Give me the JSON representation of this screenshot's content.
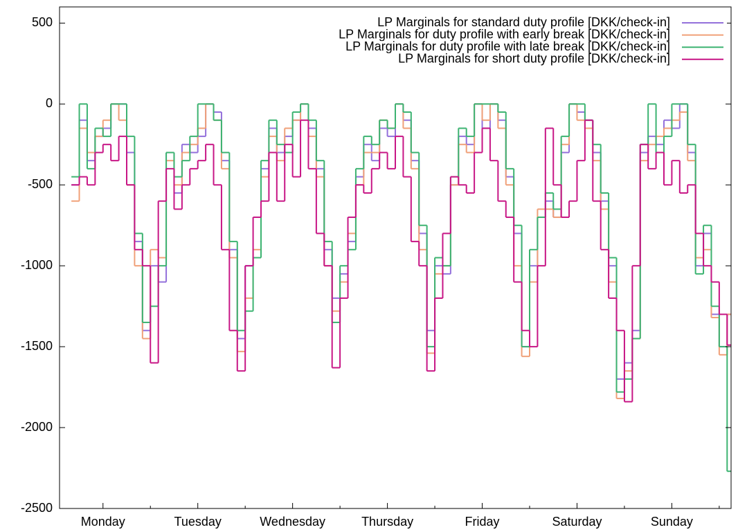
{
  "chart_data": {
    "type": "step",
    "xlim": [
      1,
      171
    ],
    "ylim": [
      -2500,
      600
    ],
    "yticks": [
      500,
      0,
      -500,
      -1000,
      -1500,
      -2000,
      -2500
    ],
    "xticks": [
      {
        "value": 12,
        "label": "Monday"
      },
      {
        "value": 36,
        "label": "Tuesday"
      },
      {
        "value": 60,
        "label": "Wednesday"
      },
      {
        "value": 84,
        "label": "Thursday"
      },
      {
        "value": 108,
        "label": "Friday"
      },
      {
        "value": 132,
        "label": "Saturday"
      },
      {
        "value": 156,
        "label": "Sunday"
      }
    ],
    "xminor_ticks": [
      24,
      48,
      72,
      96,
      120,
      144,
      168
    ],
    "grid": true,
    "legend": "top-right",
    "x": [
      4,
      6,
      8,
      10,
      12,
      14,
      16,
      18,
      20,
      22,
      24,
      26,
      28,
      30,
      32,
      34,
      36,
      38,
      40,
      42,
      44,
      46,
      48,
      50,
      52,
      54,
      56,
      58,
      60,
      62,
      64,
      66,
      68,
      70,
      72,
      74,
      76,
      78,
      80,
      82,
      84,
      86,
      88,
      90,
      92,
      94,
      96,
      98,
      100,
      102,
      104,
      106,
      108,
      110,
      112,
      114,
      116,
      118,
      120,
      122,
      124,
      126,
      128,
      130,
      132,
      134,
      136,
      138,
      140,
      142,
      144,
      146,
      148,
      150,
      152,
      154,
      156,
      158,
      160,
      162,
      164,
      166,
      168,
      170
    ],
    "series": [
      {
        "name": "LP Marginals for standard duty profile [DKK/check-in]",
        "color": "#9370db",
        "values": [
          -500,
          -100,
          -350,
          -200,
          -150,
          0,
          0,
          -300,
          -850,
          -1400,
          -1000,
          -1100,
          -300,
          -550,
          -250,
          -300,
          -200,
          0,
          -50,
          -350,
          -900,
          -1450,
          -1000,
          -950,
          -400,
          -150,
          -300,
          -200,
          -100,
          0,
          -150,
          -400,
          -900,
          -1200,
          -1050,
          -850,
          -450,
          -250,
          -350,
          -150,
          -200,
          0,
          -100,
          -350,
          -800,
          -1400,
          -1000,
          -1050,
          -500,
          -200,
          -250,
          0,
          -150,
          0,
          -100,
          -450,
          -800,
          -1500,
          -1000,
          -700,
          -600,
          -700,
          -300,
          0,
          -50,
          -100,
          -300,
          -600,
          -1000,
          -1700,
          -1600,
          -1400,
          -300,
          -200,
          -250,
          -100,
          -150,
          0,
          -300,
          -1000,
          -800,
          -1300,
          -1500,
          -1300
        ]
      },
      {
        "name": "LP Marginals for duty profile with early break [DKK/check-in]",
        "color": "#f0a078",
        "values": [
          -600,
          -150,
          -300,
          -200,
          -100,
          0,
          -100,
          -500,
          -1000,
          -1450,
          -900,
          -950,
          -350,
          -500,
          -300,
          -250,
          -150,
          0,
          -100,
          -400,
          -950,
          -1530,
          -1200,
          -900,
          -450,
          -200,
          -350,
          -150,
          -100,
          0,
          -200,
          -450,
          -1000,
          -1280,
          -1100,
          -800,
          -500,
          -300,
          -300,
          -100,
          -150,
          0,
          -150,
          -400,
          -900,
          -1540,
          -1050,
          -1000,
          -500,
          -250,
          -300,
          0,
          -100,
          0,
          -150,
          -500,
          -1000,
          -1560,
          -1100,
          -650,
          -650,
          -700,
          -250,
          0,
          -100,
          -150,
          -350,
          -650,
          -1100,
          -1820,
          -1650,
          -1450,
          -350,
          -250,
          -200,
          -150,
          -100,
          -50,
          -350,
          -950,
          -900,
          -1320,
          -1550,
          -1300
        ]
      },
      {
        "name": "LP Marginals for duty profile with late break [DKK/check-in]",
        "color": "#3cb371",
        "values": [
          -450,
          0,
          -400,
          -150,
          -200,
          0,
          0,
          -200,
          -800,
          -1350,
          -1250,
          -1000,
          -300,
          -450,
          -350,
          -200,
          0,
          0,
          -100,
          -300,
          -850,
          -1400,
          -1280,
          -950,
          -350,
          -100,
          -250,
          -300,
          -50,
          0,
          -100,
          -350,
          -850,
          -1350,
          -1000,
          -900,
          -400,
          -200,
          -250,
          -100,
          -150,
          0,
          -50,
          -300,
          -750,
          -1500,
          -950,
          -1000,
          -450,
          -150,
          -200,
          0,
          0,
          0,
          -50,
          -400,
          -750,
          -1500,
          -900,
          -700,
          -550,
          -650,
          -200,
          0,
          0,
          -100,
          -250,
          -550,
          -950,
          -1780,
          -1700,
          -1450,
          -250,
          0,
          -300,
          -200,
          0,
          0,
          -250,
          -1050,
          -750,
          -1250,
          -1500,
          -2270
        ]
      },
      {
        "name": "LP Marginals for short duty profile [DKK/check-in]",
        "color": "#c71585",
        "values": [
          -500,
          -450,
          -500,
          -300,
          -250,
          -350,
          -200,
          -500,
          -900,
          -1000,
          -1600,
          -600,
          -400,
          -650,
          -500,
          -400,
          -350,
          -250,
          -500,
          -900,
          -1400,
          -1650,
          -1000,
          -700,
          -600,
          -300,
          -600,
          -250,
          -450,
          -100,
          -400,
          -800,
          -1000,
          -1630,
          -1200,
          -700,
          -500,
          -550,
          -400,
          -300,
          -400,
          -200,
          -450,
          -850,
          -1000,
          -1650,
          -1200,
          -800,
          -450,
          -500,
          -550,
          -300,
          -150,
          -350,
          -600,
          -700,
          -1100,
          -1400,
          -1500,
          -1000,
          -150,
          -500,
          -700,
          -600,
          -350,
          -100,
          -600,
          -900,
          -1200,
          -1400,
          -1840,
          -1000,
          -250,
          -400,
          -300,
          -500,
          -350,
          -550,
          -500,
          -800,
          -1000,
          -1100,
          -1300,
          -1490
        ]
      }
    ]
  }
}
